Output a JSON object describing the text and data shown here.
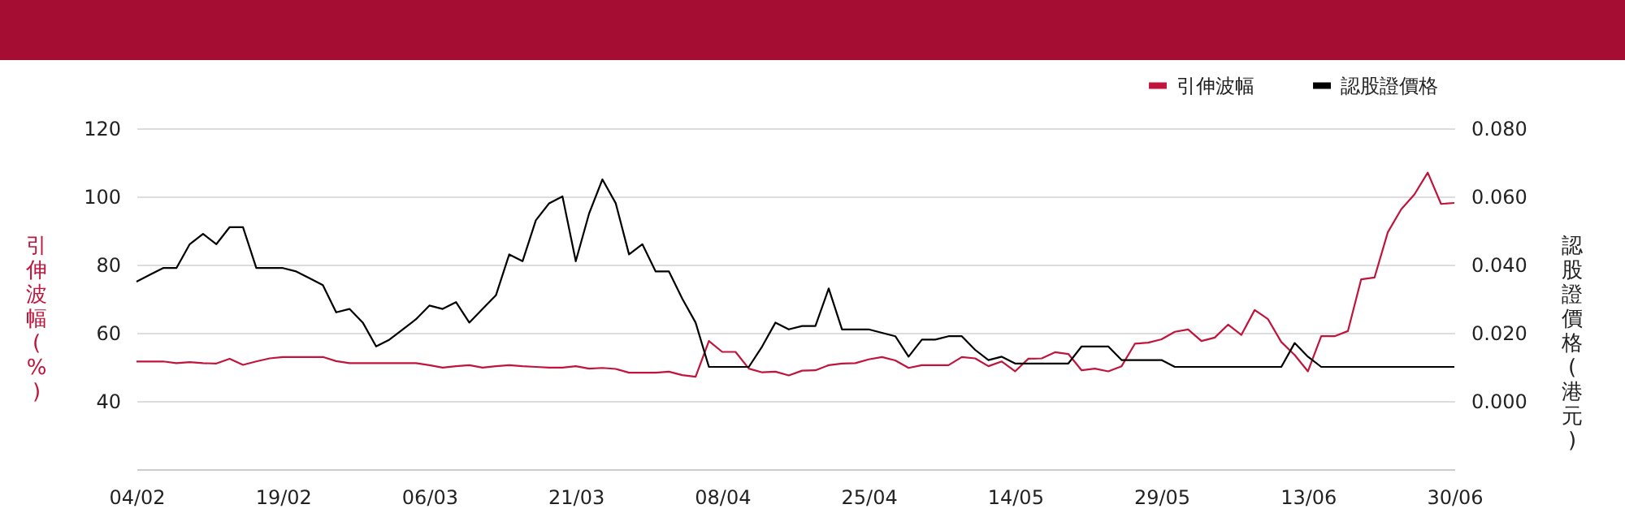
{
  "chart_data": {
    "type": "line",
    "ylabel": "引伸波幅(%)",
    "y2label": "認股證價格(港元)",
    "categories": [
      "04/02",
      null,
      null,
      null,
      null,
      null,
      null,
      null,
      null,
      null,
      null,
      "19/02",
      null,
      null,
      null,
      null,
      null,
      null,
      null,
      null,
      null,
      null,
      "06/03",
      null,
      null,
      null,
      null,
      null,
      null,
      null,
      null,
      null,
      null,
      "21/03",
      null,
      null,
      null,
      null,
      null,
      null,
      null,
      null,
      null,
      null,
      "08/04",
      null,
      null,
      null,
      null,
      null,
      null,
      null,
      null,
      null,
      null,
      "25/04",
      null,
      null,
      null,
      null,
      null,
      null,
      null,
      null,
      null,
      null,
      "14/05",
      null,
      null,
      null,
      null,
      null,
      null,
      null,
      null,
      null,
      null,
      "29/05",
      null,
      null,
      null,
      null,
      null,
      null,
      null,
      null,
      null,
      null,
      "13/06",
      null,
      null,
      null,
      null,
      null,
      null,
      null,
      null,
      null,
      null,
      "30/06"
    ],
    "series": [
      {
        "name": "引伸波幅",
        "color": "#c0143c",
        "axis": "y",
        "values": [
          51.6,
          51.6,
          51.6,
          51.1,
          51.4,
          51.1,
          51.0,
          52.4,
          50.6,
          51.6,
          52.5,
          52.9,
          52.9,
          52.9,
          52.9,
          51.7,
          51.1,
          51.1,
          51.1,
          51.1,
          51.1,
          51.1,
          50.5,
          49.8,
          50.2,
          50.5,
          49.8,
          50.2,
          50.5,
          50.2,
          50.0,
          49.8,
          49.8,
          50.2,
          49.5,
          49.7,
          49.4,
          48.3,
          48.3,
          48.3,
          48.6,
          47.6,
          47.1,
          57.6,
          54.4,
          54.4,
          49.5,
          48.4,
          48.6,
          47.5,
          48.9,
          49.0,
          50.5,
          51.0,
          51.1,
          52.2,
          52.9,
          51.9,
          49.7,
          50.5,
          50.5,
          50.5,
          52.9,
          52.5,
          50.2,
          51.6,
          48.7,
          52.4,
          52.5,
          54.3,
          53.8,
          49.0,
          49.5,
          48.7,
          50.2,
          56.8,
          57.1,
          58.1,
          60.3,
          61.0,
          57.6,
          58.6,
          62.4,
          59.4,
          66.7,
          64.0,
          57.3,
          53.5,
          48.7,
          59.0,
          59.0,
          60.5,
          75.7,
          76.2,
          89.5,
          96.2,
          100.6,
          107.0,
          97.8,
          98.1
        ]
      },
      {
        "name": "認股證價格",
        "color": "#000000",
        "axis": "y2",
        "values": [
          0.035,
          0.037,
          0.039,
          0.039,
          0.046,
          0.049,
          0.046,
          0.051,
          0.051,
          0.039,
          0.039,
          0.039,
          0.038,
          0.036,
          0.034,
          0.026,
          0.027,
          0.023,
          0.016,
          0.018,
          0.021,
          0.024,
          0.028,
          0.027,
          0.029,
          0.023,
          0.027,
          0.031,
          0.043,
          0.041,
          0.053,
          0.058,
          0.06,
          0.041,
          0.055,
          0.065,
          0.058,
          0.043,
          0.046,
          0.038,
          0.038,
          0.03,
          0.023,
          0.01,
          0.01,
          0.01,
          0.01,
          0.016,
          0.023,
          0.021,
          0.022,
          0.022,
          0.033,
          0.021,
          0.021,
          0.021,
          0.02,
          0.019,
          0.013,
          0.018,
          0.018,
          0.019,
          0.019,
          0.015,
          0.012,
          0.013,
          0.011,
          0.011,
          0.011,
          0.011,
          0.011,
          0.016,
          0.016,
          0.016,
          0.012,
          0.012,
          0.012,
          0.012,
          0.01,
          0.01,
          0.01,
          0.01,
          0.01,
          0.01,
          0.01,
          0.01,
          0.01,
          0.017,
          0.013,
          0.01,
          0.01,
          0.01,
          0.01,
          0.01,
          0.01,
          0.01,
          0.01,
          0.01,
          0.01,
          0.01
        ]
      }
    ],
    "ylim": [
      20,
      120
    ],
    "yticks": [
      40,
      60,
      80,
      100,
      120
    ],
    "y2lim": [
      -0.02,
      0.08
    ],
    "y2ticks": [
      {
        "value": 0,
        "label": "0.000"
      },
      {
        "value": 0.02,
        "label": "0.020"
      },
      {
        "value": 0.04,
        "label": "0.040"
      },
      {
        "value": 0.06,
        "label": "0.060"
      },
      {
        "value": 0.08,
        "label": "0.080"
      }
    ],
    "grid": "y",
    "legend": "top right",
    "line_style": "solid"
  }
}
